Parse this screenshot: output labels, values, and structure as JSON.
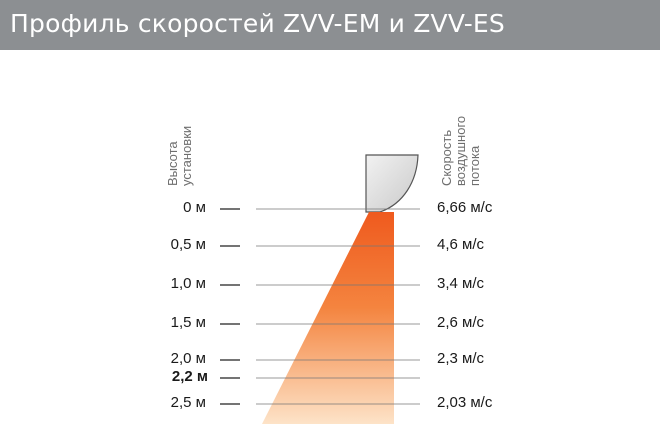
{
  "header": {
    "title": "Профиль скоростей ZVV-EM и ZVV-ES"
  },
  "axis_labels": {
    "height": [
      "Высота",
      "установки"
    ],
    "speed": [
      "Скорость",
      "воздушного",
      "потока"
    ]
  },
  "rows": [
    {
      "height": "0 м",
      "speed": "6,66 м/с",
      "bold": false
    },
    {
      "height": "0,5 м",
      "speed": "4,6 м/с",
      "bold": false
    },
    {
      "height": "1,0 м",
      "speed": "3,4 м/с",
      "bold": false
    },
    {
      "height": "1,5 м",
      "speed": "2,6 м/с",
      "bold": false
    },
    {
      "height": "2,0 м",
      "speed": "2,3 м/с",
      "bold": false
    },
    {
      "height": "2,2 м",
      "speed": "",
      "bold": true
    },
    {
      "height": "2,5 м",
      "speed": "2,03 м/с",
      "bold": false
    }
  ],
  "colors": {
    "header": "#8c8f92",
    "flow_top": "#ef5a1e",
    "flow_bottom": "#fde3c8"
  }
}
